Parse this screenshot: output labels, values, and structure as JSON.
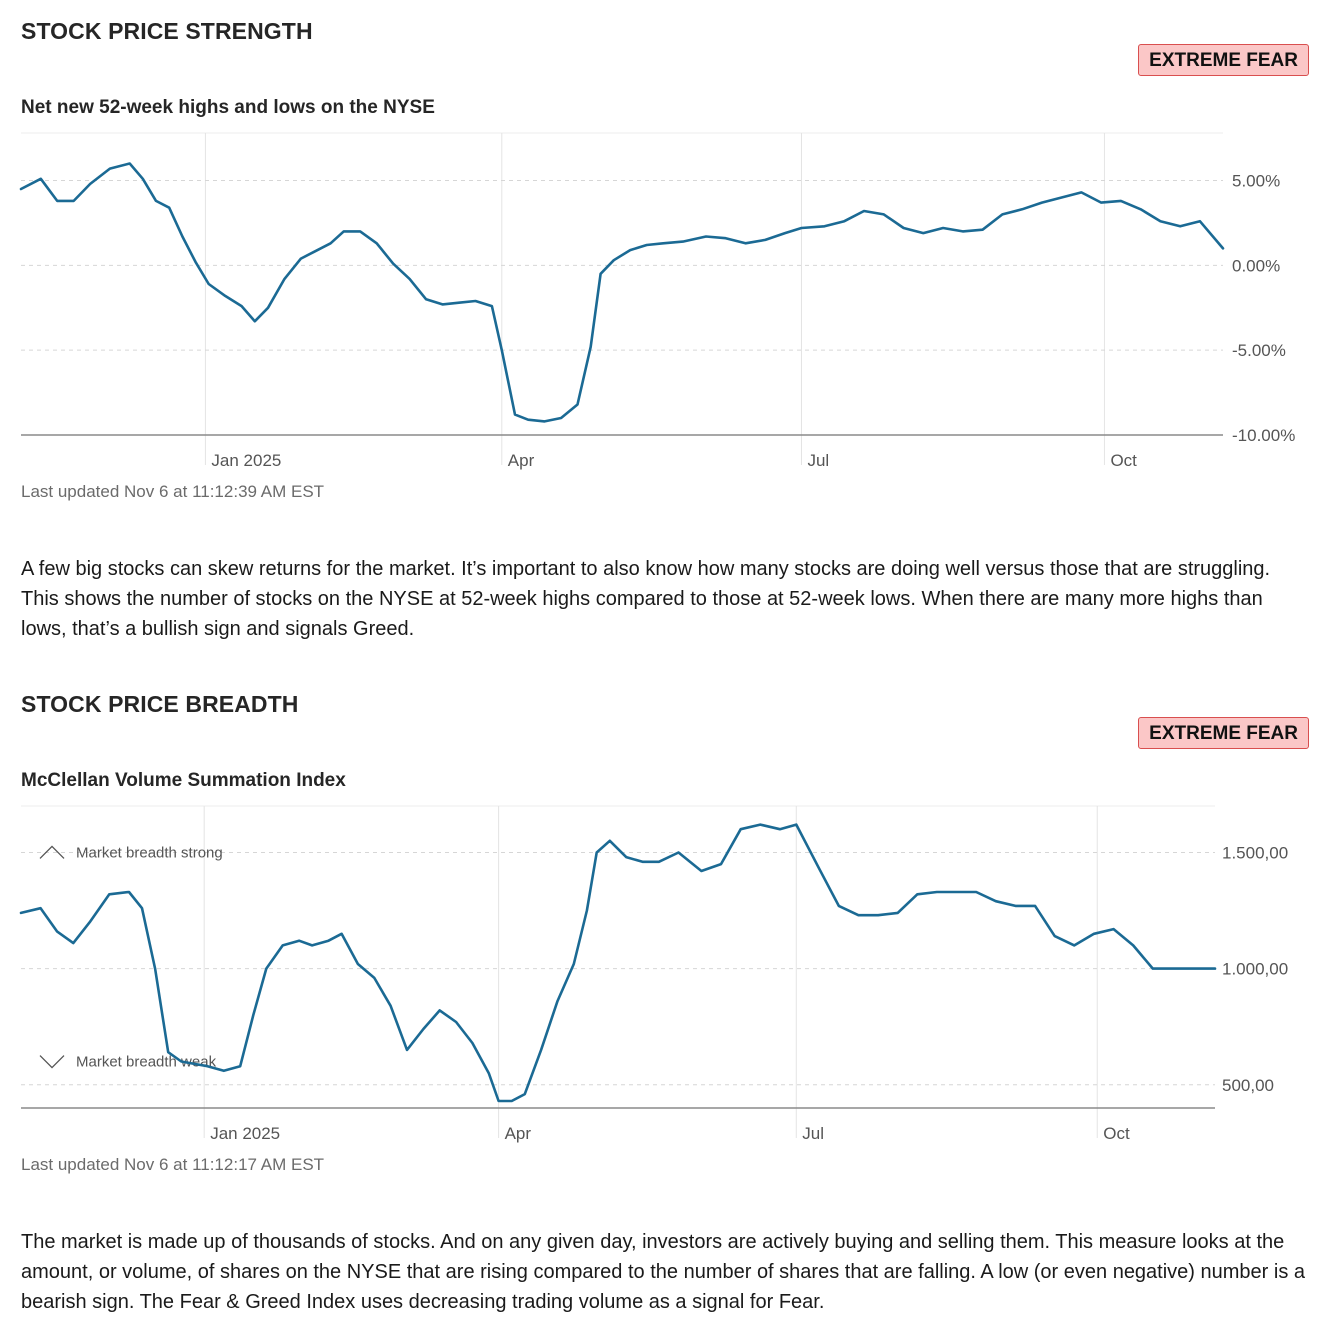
{
  "strength": {
    "title": "STOCK PRICE STRENGTH",
    "badge": "EXTREME FEAR",
    "chart_title": "Net new 52-week highs and lows on the NYSE",
    "updated": "Last updated Nov 6 at 11:12:39 AM EST",
    "description": "A few big stocks can skew returns for the market. It’s important to also know how many stocks are doing well versus those that are struggling. This shows the number of stocks on the NYSE at 52-week highs compared to those at 52-week lows. When there are many more highs than lows, that’s a bullish sign and signals Greed."
  },
  "breadth": {
    "title": "STOCK PRICE BREADTH",
    "badge": "EXTREME FEAR",
    "chart_title": "McClellan Volume Summation Index",
    "updated": "Last updated Nov 6 at 11:12:17 AM EST",
    "description": "The market is made up of thousands of stocks. And on any given day, investors are actively buying and selling them. This measure looks at the amount, or volume, of shares on the NYSE that are rising compared to the number of shares that are falling. A low (or even negative) number is a bearish sign. The Fear & Greed Index uses decreasing trading volume as a signal for Fear."
  },
  "colors": {
    "line": "#1b6a94",
    "badge_bg": "#fbc7c7",
    "badge_border": "#d94f4f"
  },
  "chart_data": [
    {
      "type": "line",
      "title": "Net new 52-week highs and lows on the NYSE",
      "xlabel": "",
      "ylabel": "",
      "x_range": [
        "2024-11-06",
        "2025-11-06"
      ],
      "ylim": [
        -10,
        7.8
      ],
      "y_ticks": [
        5,
        0,
        -5,
        -10
      ],
      "y_tick_labels": [
        "5.00%",
        "0.00%",
        "-5.00%",
        "-10.00%"
      ],
      "x_ticks": [
        "2025-01-01",
        "2025-04-01",
        "2025-07-01",
        "2025-10-01"
      ],
      "x_tick_labels": [
        "Jan 2025",
        "Apr",
        "Jul",
        "Oct"
      ],
      "grid": true,
      "series": [
        {
          "x": [
            "2024-11-06",
            "2024-11-12",
            "2024-11-17",
            "2024-11-22",
            "2024-11-27",
            "2024-12-03",
            "2024-12-09",
            "2024-12-13",
            "2024-12-17",
            "2024-12-21",
            "2024-12-25",
            "2024-12-29",
            "2025-01-02",
            "2025-01-07",
            "2025-01-12",
            "2025-01-16",
            "2025-01-20",
            "2025-01-25",
            "2025-01-30",
            "2025-02-03",
            "2025-02-08",
            "2025-02-12",
            "2025-02-17",
            "2025-02-22",
            "2025-02-27",
            "2025-03-04",
            "2025-03-09",
            "2025-03-14",
            "2025-03-19",
            "2025-03-24",
            "2025-03-29",
            "2025-04-01",
            "2025-04-05",
            "2025-04-09",
            "2025-04-14",
            "2025-04-19",
            "2025-04-24",
            "2025-04-28",
            "2025-05-01",
            "2025-05-05",
            "2025-05-10",
            "2025-05-15",
            "2025-05-20",
            "2025-05-26",
            "2025-06-02",
            "2025-06-08",
            "2025-06-14",
            "2025-06-20",
            "2025-06-26",
            "2025-07-01",
            "2025-07-08",
            "2025-07-14",
            "2025-07-20",
            "2025-07-26",
            "2025-08-01",
            "2025-08-07",
            "2025-08-13",
            "2025-08-19",
            "2025-08-25",
            "2025-08-31",
            "2025-09-06",
            "2025-09-12",
            "2025-09-18",
            "2025-09-24",
            "2025-09-30",
            "2025-10-06",
            "2025-10-12",
            "2025-10-18",
            "2025-10-24",
            "2025-10-30",
            "2025-11-06"
          ],
          "values": [
            4.5,
            5.1,
            3.8,
            3.8,
            4.8,
            5.7,
            6.0,
            5.1,
            3.8,
            3.4,
            1.7,
            0.2,
            -1.1,
            -1.8,
            -2.4,
            -3.3,
            -2.5,
            -0.8,
            0.4,
            0.8,
            1.3,
            2.0,
            2.0,
            1.3,
            0.1,
            -0.8,
            -2.0,
            -2.3,
            -2.2,
            -2.1,
            -2.4,
            -5.0,
            -8.8,
            -9.1,
            -9.2,
            -9.0,
            -8.2,
            -4.8,
            -0.5,
            0.3,
            0.9,
            1.2,
            1.3,
            1.4,
            1.7,
            1.6,
            1.3,
            1.5,
            1.9,
            2.2,
            2.3,
            2.6,
            3.2,
            3.0,
            2.2,
            1.9,
            2.2,
            2.0,
            2.1,
            3.0,
            3.3,
            3.7,
            4.0,
            4.3,
            3.7,
            3.8,
            3.3,
            2.6,
            2.3,
            2.6,
            1.0
          ]
        }
      ]
    },
    {
      "type": "line",
      "title": "McClellan Volume Summation Index",
      "xlabel": "",
      "ylabel": "",
      "x_range": [
        "2024-11-06",
        "2025-11-06"
      ],
      "ylim": [
        400,
        1700
      ],
      "y_ticks": [
        1500,
        1000,
        500
      ],
      "y_tick_labels": [
        "1.500,00",
        "1.000,00",
        "500,00"
      ],
      "x_ticks": [
        "2025-01-01",
        "2025-04-01",
        "2025-07-01",
        "2025-10-01"
      ],
      "x_tick_labels": [
        "Jan 2025",
        "Apr",
        "Jul",
        "Oct"
      ],
      "grid": true,
      "annotations": [
        {
          "label": "Market breadth strong",
          "icon": "chevron-up-icon",
          "y": 1500
        },
        {
          "label": "Market breadth weak",
          "icon": "chevron-down-icon",
          "y": 600
        }
      ],
      "series": [
        {
          "x": [
            "2024-11-06",
            "2024-11-12",
            "2024-11-17",
            "2024-11-22",
            "2024-11-27",
            "2024-12-03",
            "2024-12-09",
            "2024-12-13",
            "2024-12-17",
            "2024-12-21",
            "2024-12-25",
            "2024-12-29",
            "2025-01-02",
            "2025-01-07",
            "2025-01-12",
            "2025-01-16",
            "2025-01-20",
            "2025-01-25",
            "2025-01-30",
            "2025-02-03",
            "2025-02-08",
            "2025-02-12",
            "2025-02-17",
            "2025-02-22",
            "2025-02-27",
            "2025-03-04",
            "2025-03-09",
            "2025-03-14",
            "2025-03-19",
            "2025-03-24",
            "2025-03-29",
            "2025-04-01",
            "2025-04-05",
            "2025-04-09",
            "2025-04-14",
            "2025-04-19",
            "2025-04-24",
            "2025-04-28",
            "2025-05-01",
            "2025-05-05",
            "2025-05-10",
            "2025-05-15",
            "2025-05-20",
            "2025-05-26",
            "2025-06-02",
            "2025-06-08",
            "2025-06-14",
            "2025-06-20",
            "2025-06-26",
            "2025-07-01",
            "2025-07-08",
            "2025-07-14",
            "2025-07-20",
            "2025-07-26",
            "2025-08-01",
            "2025-08-07",
            "2025-08-13",
            "2025-08-19",
            "2025-08-25",
            "2025-08-31",
            "2025-09-06",
            "2025-09-12",
            "2025-09-18",
            "2025-09-24",
            "2025-09-30",
            "2025-10-06",
            "2025-10-12",
            "2025-10-18",
            "2025-10-24",
            "2025-10-30",
            "2025-11-06"
          ],
          "values": [
            1240,
            1260,
            1160,
            1110,
            1200,
            1320,
            1330,
            1260,
            1000,
            640,
            600,
            590,
            580,
            560,
            580,
            800,
            1000,
            1100,
            1120,
            1100,
            1120,
            1150,
            1020,
            960,
            840,
            650,
            740,
            820,
            770,
            680,
            550,
            430,
            430,
            460,
            650,
            860,
            1020,
            1250,
            1500,
            1550,
            1480,
            1460,
            1460,
            1500,
            1420,
            1450,
            1600,
            1620,
            1600,
            1620,
            1430,
            1270,
            1230,
            1230,
            1240,
            1320,
            1330,
            1330,
            1330,
            1290,
            1270,
            1270,
            1140,
            1100,
            1150,
            1170,
            1100,
            1000,
            1000,
            1000,
            1000
          ]
        }
      ]
    }
  ]
}
